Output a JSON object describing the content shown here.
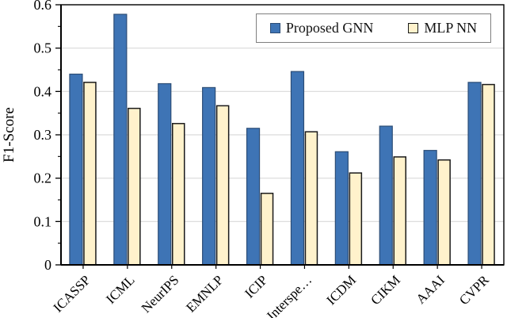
{
  "chart_data": {
    "type": "bar",
    "title": "",
    "xlabel": "",
    "ylabel": "F1-Score",
    "categories": [
      "ICASSP",
      "ICML",
      "NeurIPS",
      "EMNLP",
      "ICIP",
      "Interspe…",
      "ICDM",
      "CIKM",
      "AAAI",
      "CVPR"
    ],
    "series": [
      {
        "name": "Proposed GNN",
        "color": "#3E74B5",
        "border_color": "#2C4D76",
        "values": [
          0.44,
          0.578,
          0.418,
          0.409,
          0.315,
          0.446,
          0.261,
          0.32,
          0.264,
          0.421
        ]
      },
      {
        "name": "MLP NN",
        "color": "#FFF2CC",
        "border_color": "#1A1A1A",
        "values": [
          0.421,
          0.361,
          0.326,
          0.367,
          0.165,
          0.307,
          0.212,
          0.249,
          0.242,
          0.416
        ]
      }
    ],
    "ylim": [
      0,
      0.6
    ],
    "yticks": [
      0,
      0.1,
      0.2,
      0.3,
      0.4,
      0.5,
      0.6
    ],
    "ytick_labels": [
      "0",
      "0.1",
      "0.2",
      "0.3",
      "0.4",
      "0.5",
      "0.6"
    ],
    "minor_tick_step": 0.05,
    "grid": "horizontal-major",
    "legend_position": "top-right",
    "colors": {
      "gridline": "#D9D9D9",
      "axis": "#000000",
      "plot_border": "#000000",
      "legend_border": "#7F7F7F",
      "background": "#FFFFFF"
    }
  }
}
